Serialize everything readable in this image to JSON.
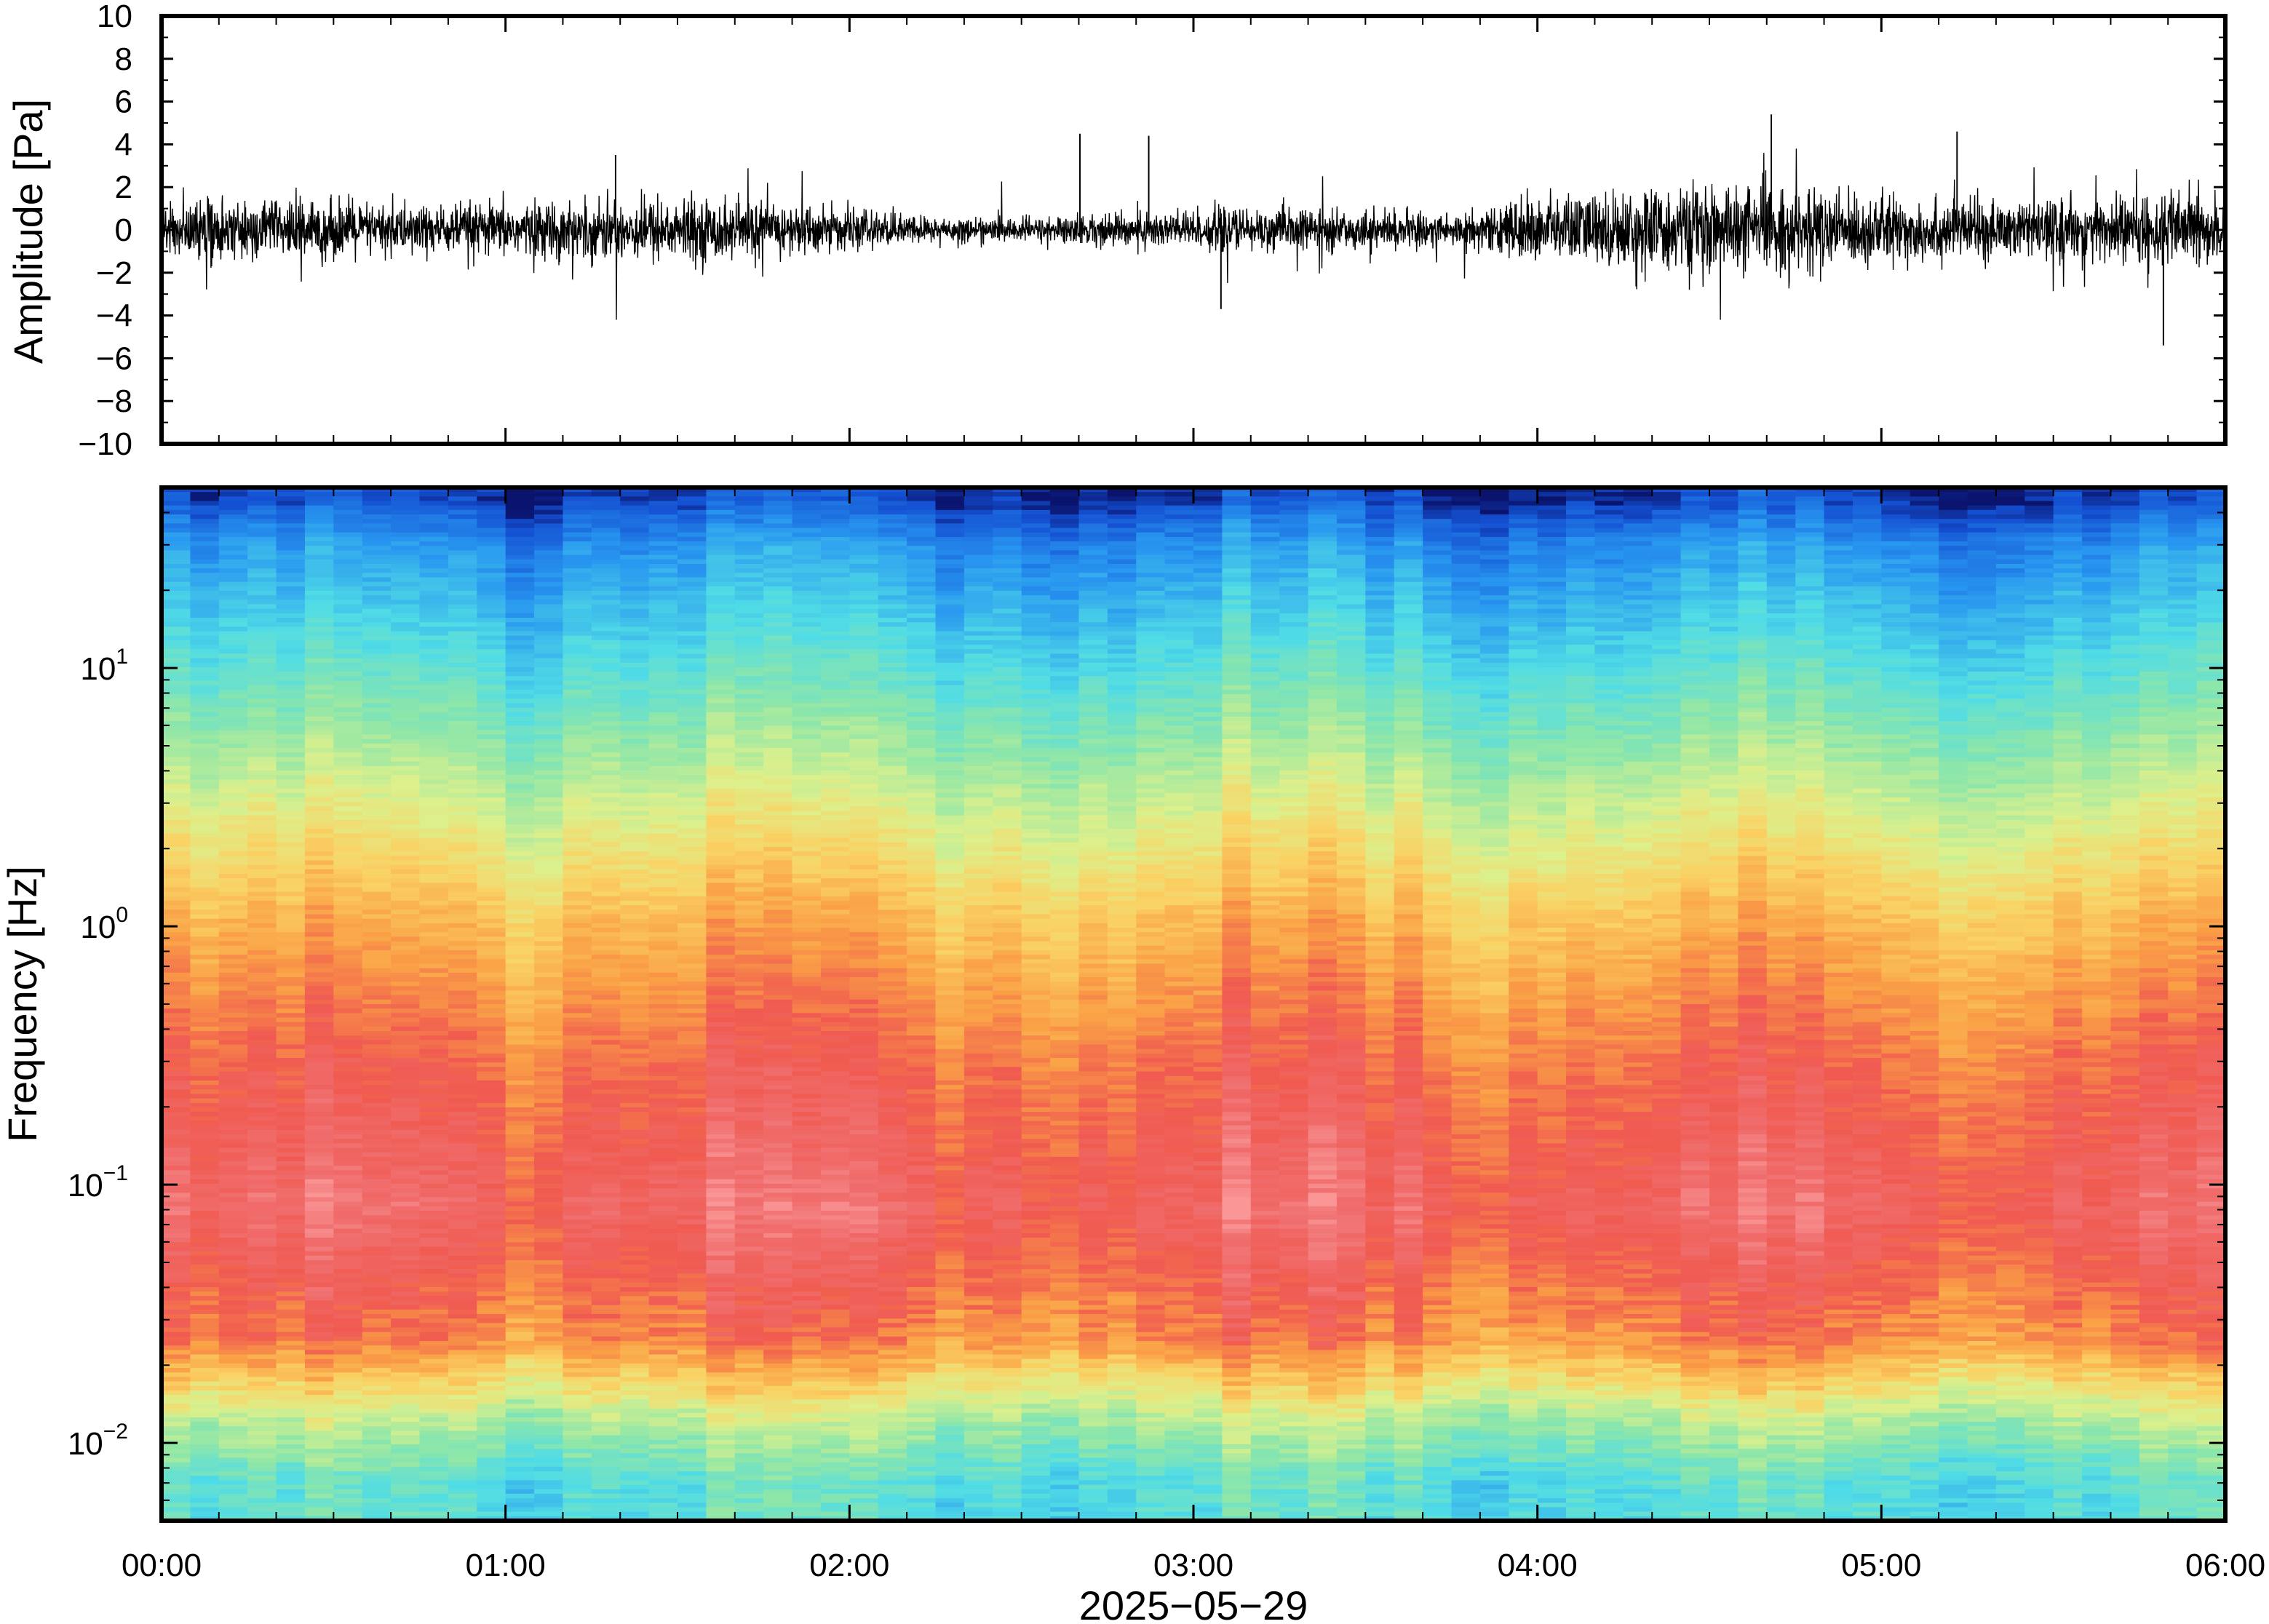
{
  "chart_data": [
    {
      "type": "line",
      "panel": "waveform",
      "ylabel": "Amplitude [Pa]",
      "ylim": [
        -10,
        10
      ],
      "yticks": [
        10,
        8,
        6,
        4,
        2,
        0,
        -2,
        -4,
        -6,
        -8,
        -10
      ],
      "ytick_labels": [
        "10",
        "8",
        "6",
        "4",
        "2",
        "0",
        "−2",
        "−4",
        "−6",
        "−8",
        "−10"
      ],
      "x_range_hours": [
        0,
        6
      ],
      "typical_envelope_pa": 2,
      "peak_values_pa": [
        {
          "x_hours": 1.32,
          "y": 3.5
        },
        {
          "x_hours": 2.67,
          "y": 4.5
        },
        {
          "x_hours": 2.87,
          "y": 4.4
        },
        {
          "x_hours": 3.08,
          "y": -3.7
        },
        {
          "x_hours": 4.68,
          "y": 5.4
        },
        {
          "x_hours": 5.22,
          "y": 4.6
        },
        {
          "x_hours": 5.82,
          "y": -5.4
        }
      ],
      "line_color": "#000000"
    },
    {
      "type": "heatmap",
      "panel": "spectrogram",
      "ylabel": "Frequency [Hz]",
      "yscale": "log",
      "ylim": [
        0.005,
        50
      ],
      "yticks": [
        {
          "base": "10",
          "exp": "−2"
        },
        {
          "base": "10",
          "exp": "−1"
        },
        {
          "base": "10",
          "exp": "0"
        },
        {
          "base": "10",
          "exp": "1"
        }
      ],
      "xlabel": "2025−05−29",
      "xtick_labels": [
        "00:00",
        "01:00",
        "02:00",
        "03:00",
        "04:00",
        "05:00",
        "06:00"
      ],
      "colormap": "spectral (red = high power, blue = low power)",
      "power_profile": [
        {
          "frequency_hz": 0.007,
          "level": 0.35
        },
        {
          "frequency_hz": 0.012,
          "level": 0.5
        },
        {
          "frequency_hz": 0.025,
          "level": 0.8
        },
        {
          "frequency_hz": 0.08,
          "level": 0.92
        },
        {
          "frequency_hz": 0.3,
          "level": 0.84
        },
        {
          "frequency_hz": 1.0,
          "level": 0.72
        },
        {
          "frequency_hz": 3.0,
          "level": 0.55
        },
        {
          "frequency_hz": 10.0,
          "level": 0.35
        },
        {
          "frequency_hz": 30.0,
          "level": 0.18
        },
        {
          "frequency_hz": 45.0,
          "level": 0.05
        }
      ]
    }
  ]
}
